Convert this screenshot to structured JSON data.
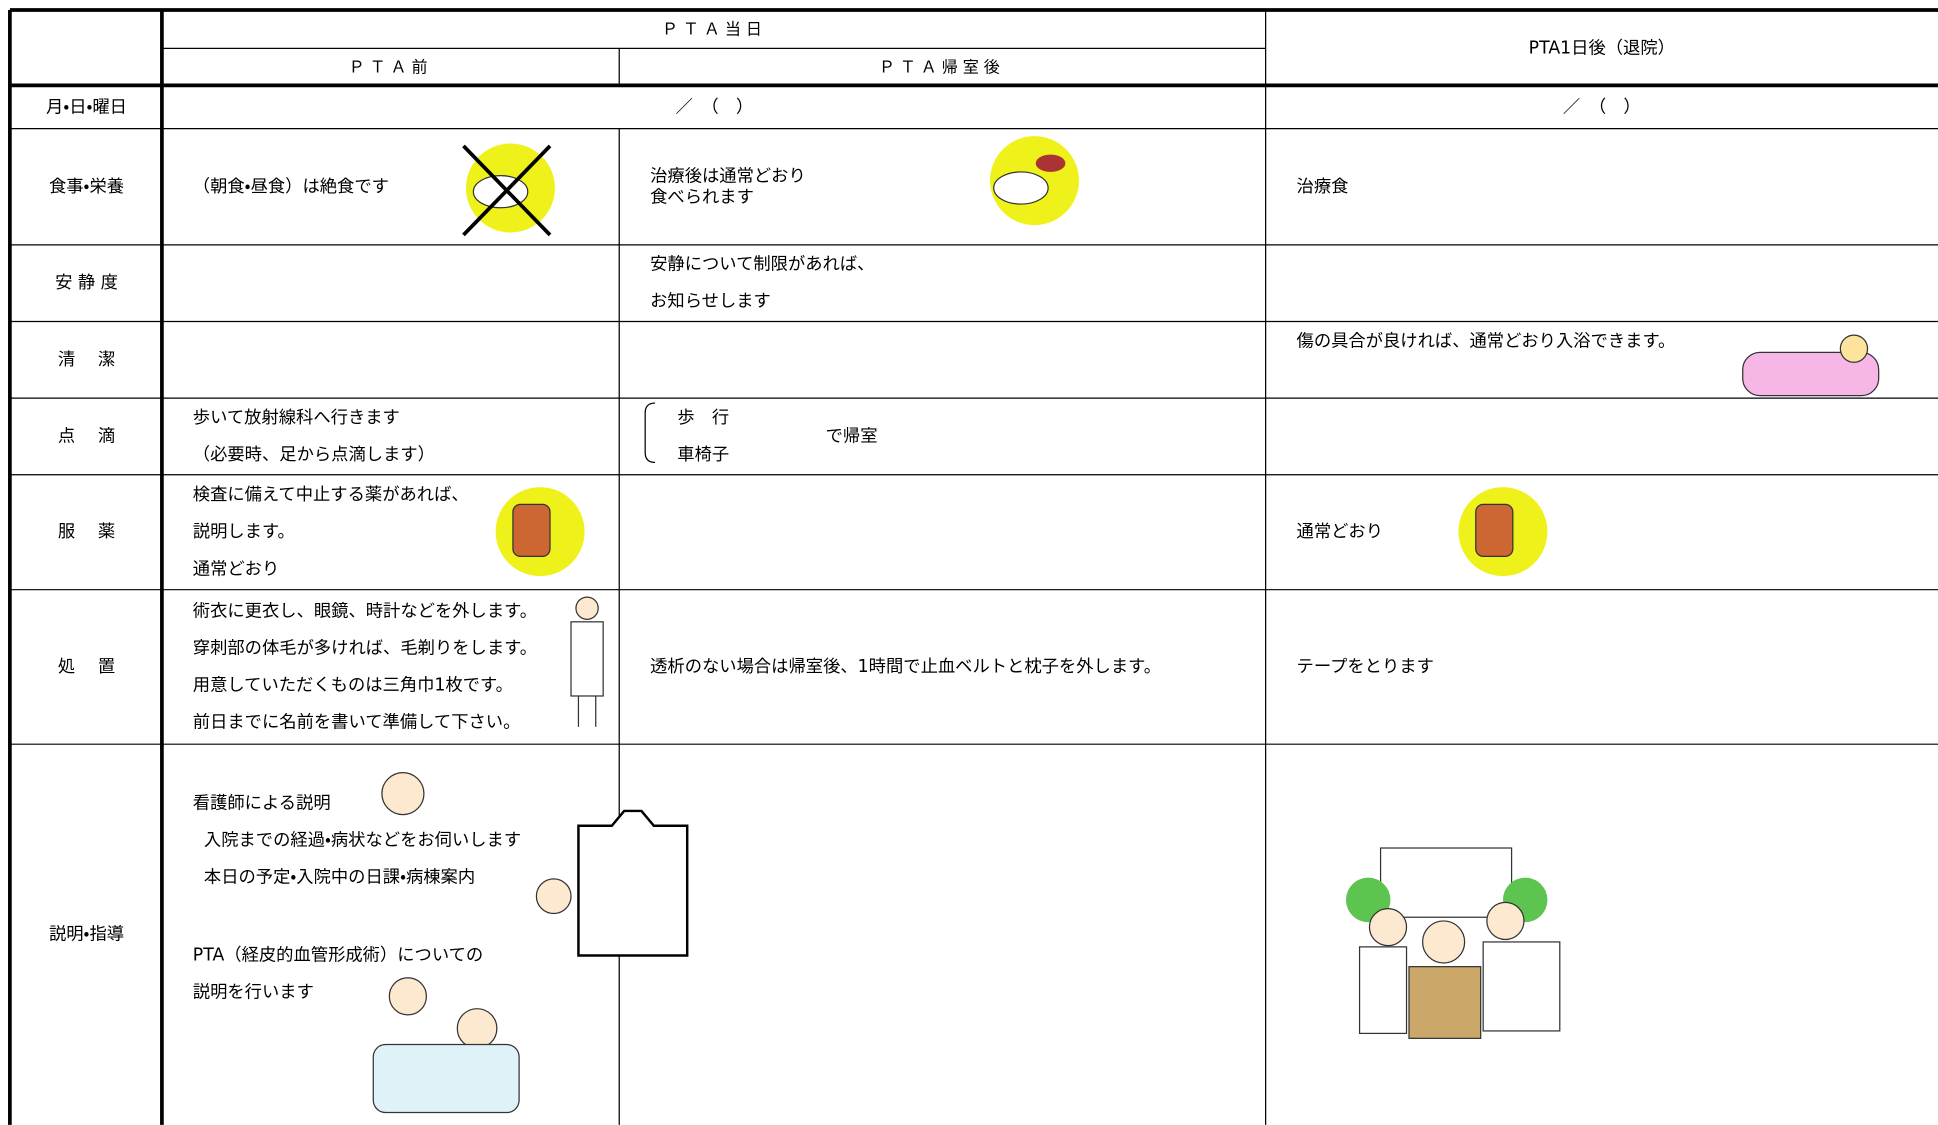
{
  "header": {
    "group": "ＰＴＡ当日",
    "columns": [
      "ＰＴＡ前",
      "ＰＴＡ帰室後",
      "PTA1日後（退院）"
    ]
  },
  "date_row": {
    "label": "月・日・曜日",
    "cells": [
      "／　（　）",
      "／　（　）"
    ]
  },
  "rows": [
    {
      "label": "食事・栄養",
      "cells": [
        [
          "（朝食・昼食）は絶食です"
        ],
        [
          "治療後は通常どおり",
          "食べられます"
        ],
        [
          "治療食"
        ]
      ]
    },
    {
      "label": "安 静 度",
      "cells": [
        [],
        [
          "安静について制限があれば、",
          "お知らせします"
        ],
        []
      ]
    },
    {
      "label": "清　 潔",
      "cells": [
        [],
        [],
        [
          "傷の具合が良ければ、通常どおり入浴できます。"
        ]
      ]
    },
    {
      "label": "点　 滴",
      "cells": [
        [
          "歩いて放射線科へ行きます",
          "（必要時、足から点滴します）"
        ],
        [
          "歩　行",
          "車椅子"
        ],
        []
      ],
      "return_note": "で帰室"
    },
    {
      "label": "服　 薬",
      "cells": [
        [
          "検査に備えて中止する薬があれば、",
          "説明します。",
          "通常どおり"
        ],
        [],
        [
          "通常どおり"
        ]
      ]
    },
    {
      "label": "処　 置",
      "cells": [
        [
          "術衣に更衣し、眼鏡、時計などを外します。",
          "穿刺部の体毛が多ければ、毛剃りをします。",
          "用意していただくものは三角巾1枚です。",
          "前日までに名前を書いて準備して下さい。"
        ],
        [
          "透析のない場合は帰室後、1時間で止血ベルトと枕子を外します。"
        ],
        [
          "テープをとります"
        ]
      ]
    },
    {
      "label": "説明・指導",
      "cells": [
        [
          "看護師による説明",
          "入院までの経過・病状などをお伺いします",
          "本日の予定・入院中の日課・病棟案内",
          "PTA（経皮的血管形成術）についての",
          "説明を行います"
        ],
        [],
        []
      ]
    }
  ]
}
